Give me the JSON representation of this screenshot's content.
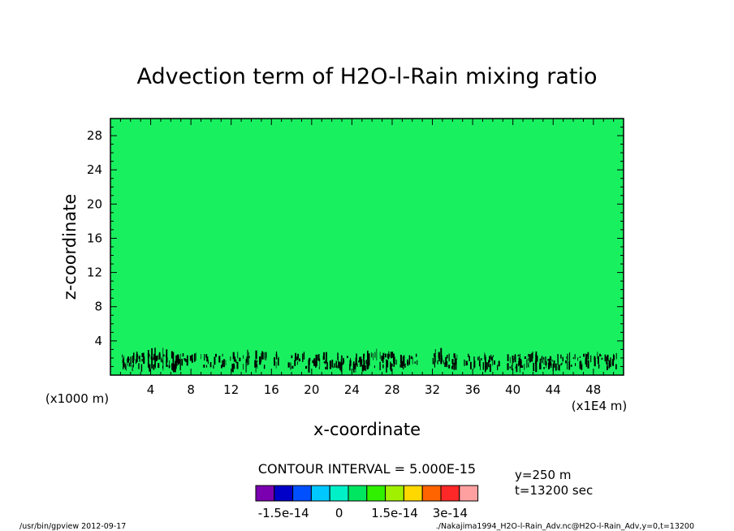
{
  "chart_data": {
    "type": "heatmap",
    "title": "Advection term of H2O-l-Rain mixing ratio",
    "xlabel": "x-coordinate",
    "ylabel": "z-coordinate",
    "x_scale_note": "(x1E4 m)",
    "y_scale_note": "(x1000 m)",
    "xlim": [
      0,
      51
    ],
    "ylim": [
      0,
      30
    ],
    "x_ticks": [
      4,
      8,
      12,
      16,
      20,
      24,
      28,
      32,
      36,
      40,
      44,
      48
    ],
    "y_ticks": [
      4,
      8,
      12,
      16,
      20,
      24,
      28
    ],
    "field_value_bulk": 0,
    "noise_band_z": [
      0.3,
      3.2
    ],
    "contour_interval": "CONTOUR INTERVAL = 5.000E-15",
    "colorbar": {
      "colors": [
        "#7a00b0",
        "#0000c8",
        "#0050ff",
        "#00c8ff",
        "#00f0c8",
        "#00e660",
        "#30f000",
        "#a0f000",
        "#ffd800",
        "#ff6400",
        "#ff2828",
        "#ffa0a0"
      ],
      "tick_labels": [
        "-1.5e-14",
        "0",
        "1.5e-14",
        "3e-14"
      ],
      "tick_positions": [
        1,
        4,
        7,
        10
      ]
    },
    "annotations": [
      "y=250 m",
      "t=13200 sec"
    ]
  },
  "footer": {
    "left": "/usr/bin/gpview   2012-09-17",
    "right": "./Nakajima1994_H2O-l-Rain_Adv.nc@H2O-l-Rain_Adv,y=0,t=13200"
  },
  "colors": {
    "field": "#19f060",
    "noise": "#000000"
  }
}
